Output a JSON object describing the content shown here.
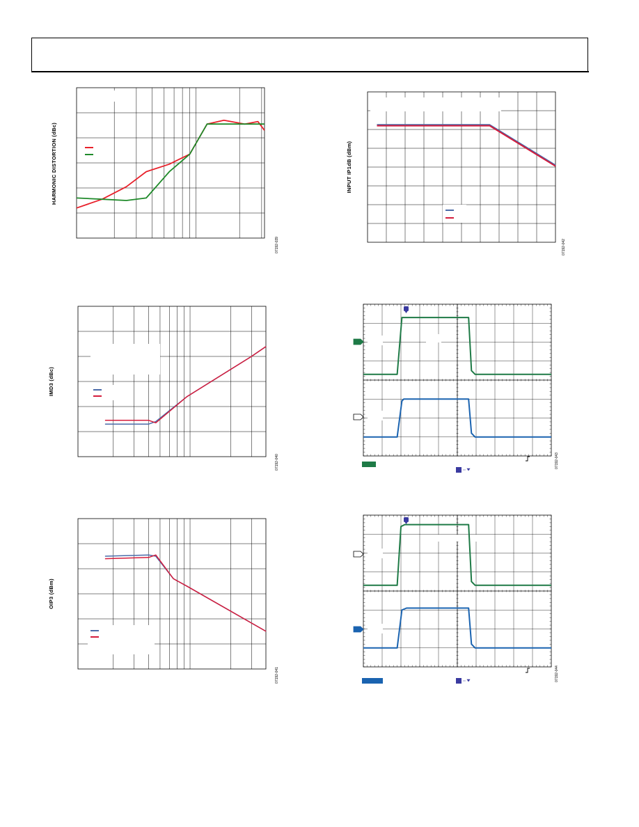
{
  "colors": {
    "red": "#e8202a",
    "green": "#1f8a2a",
    "blue": "#4a6aa8",
    "crimson": "#d41c3c",
    "scope_green": "#1e7a46",
    "scope_blue": "#1a63b0",
    "marker_purple": "#3a3aa0"
  },
  "page": {
    "figure_ids": [
      "07192-039",
      "07192-042",
      "07192-040",
      "07192-043",
      "07192-041",
      "07192-044"
    ]
  },
  "chart_data": [
    {
      "type": "line",
      "title": "",
      "xlabel": "",
      "ylabel": "HARMONIC DISTORTION (dBc)",
      "x_scale": "log",
      "x_range_decades": 1.5,
      "ylim": [
        0,
        6
      ],
      "grid": true,
      "legend": "left",
      "series": [
        {
          "name": "",
          "color": "red",
          "x": [
            1,
            1.6,
            2.5,
            3.6,
            5.5,
            8,
            11,
            15,
            22,
            28,
            31.6
          ],
          "y": [
            1.2,
            1.55,
            2.05,
            2.65,
            2.95,
            3.35,
            4.55,
            4.7,
            4.55,
            4.65,
            4.3
          ]
        },
        {
          "name": "",
          "color": "green",
          "x": [
            1,
            1.6,
            2.5,
            3.6,
            5.5,
            8,
            11,
            15,
            22,
            31.6
          ],
          "y": [
            1.6,
            1.55,
            1.5,
            1.6,
            2.65,
            3.35,
            4.55,
            4.55,
            4.55,
            4.55
          ]
        }
      ]
    },
    {
      "type": "line",
      "title": "",
      "xlabel": "",
      "ylabel": "INPUT IP1dB (dBm)",
      "ylim": [
        0,
        8
      ],
      "grid": true,
      "legend": "bottom-center",
      "series": [
        {
          "name": "",
          "color": "blue",
          "x": [
            0.5,
            6.5,
            10
          ],
          "y": [
            6.25,
            6.25,
            4.1
          ]
        },
        {
          "name": "",
          "color": "crimson",
          "x": [
            0.5,
            6.5,
            10
          ],
          "y": [
            6.2,
            6.2,
            4.05
          ]
        }
      ]
    },
    {
      "type": "line",
      "title": "",
      "xlabel": "",
      "ylabel": "IMD3 (dBc)",
      "x_scale": "log",
      "ylim": [
        0,
        6
      ],
      "grid": true,
      "legend": "left",
      "series": [
        {
          "name": "",
          "color": "blue",
          "x": [
            1.7,
            4,
            4.6,
            8.5,
            30,
            40
          ],
          "y": [
            1.3,
            1.3,
            1.4,
            2.4,
            4,
            4.4
          ]
        },
        {
          "name": "",
          "color": "crimson",
          "x": [
            1.7,
            4,
            4.6,
            8.5,
            30,
            40
          ],
          "y": [
            1.45,
            1.45,
            1.35,
            2.4,
            4,
            4.4
          ]
        }
      ]
    },
    {
      "type": "line",
      "title": "",
      "xlabel": "",
      "ylabel": "OIP3 (dBm)",
      "x_scale": "log",
      "ylim": [
        0,
        6
      ],
      "grid": true,
      "legend": "bottom-left",
      "series": [
        {
          "name": "",
          "color": "blue",
          "x": [
            1.7,
            4,
            4.6,
            6.5,
            8.5,
            40
          ],
          "y": [
            4.5,
            4.55,
            4.5,
            3.6,
            3.3,
            1.5
          ]
        },
        {
          "name": "",
          "color": "crimson",
          "x": [
            1.7,
            4,
            4.6,
            6.5,
            8.5,
            40
          ],
          "y": [
            4.4,
            4.45,
            4.55,
            3.6,
            3.3,
            1.5
          ]
        }
      ]
    },
    {
      "type": "line",
      "title": "",
      "xlabel": "",
      "ylabel": "",
      "xlim": [
        0,
        10
      ],
      "ylim": [
        0,
        8
      ],
      "grid": true,
      "series": [
        {
          "name": "",
          "color": "scope_green",
          "x": [
            0,
            1.8,
            2.05,
            2.15,
            5.6,
            5.75,
            5.95,
            10
          ],
          "y": [
            4.3,
            4.3,
            7.3,
            7.3,
            7.3,
            4.5,
            4.3,
            4.3
          ]
        },
        {
          "name": "",
          "color": "scope_blue",
          "x": [
            0,
            1.8,
            2.05,
            2.15,
            5.6,
            5.75,
            5.95,
            10
          ],
          "y": [
            1.0,
            1.0,
            2.9,
            3.0,
            3.0,
            1.2,
            1.0,
            1.0
          ]
        }
      ]
    },
    {
      "type": "line",
      "title": "",
      "xlabel": "",
      "ylabel": "",
      "xlim": [
        0,
        10
      ],
      "ylim": [
        0,
        8
      ],
      "grid": true,
      "series": [
        {
          "name": "",
          "color": "scope_green",
          "x": [
            0,
            1.8,
            2.0,
            2.2,
            5.6,
            5.75,
            5.95,
            10
          ],
          "y": [
            4.3,
            4.3,
            7.4,
            7.5,
            7.5,
            4.5,
            4.3,
            4.3
          ]
        },
        {
          "name": "",
          "color": "scope_blue",
          "x": [
            0,
            1.8,
            2.05,
            2.3,
            5.6,
            5.75,
            5.95,
            10
          ],
          "y": [
            1.0,
            1.0,
            3.0,
            3.1,
            3.1,
            1.2,
            1.0,
            1.0
          ]
        }
      ]
    }
  ]
}
